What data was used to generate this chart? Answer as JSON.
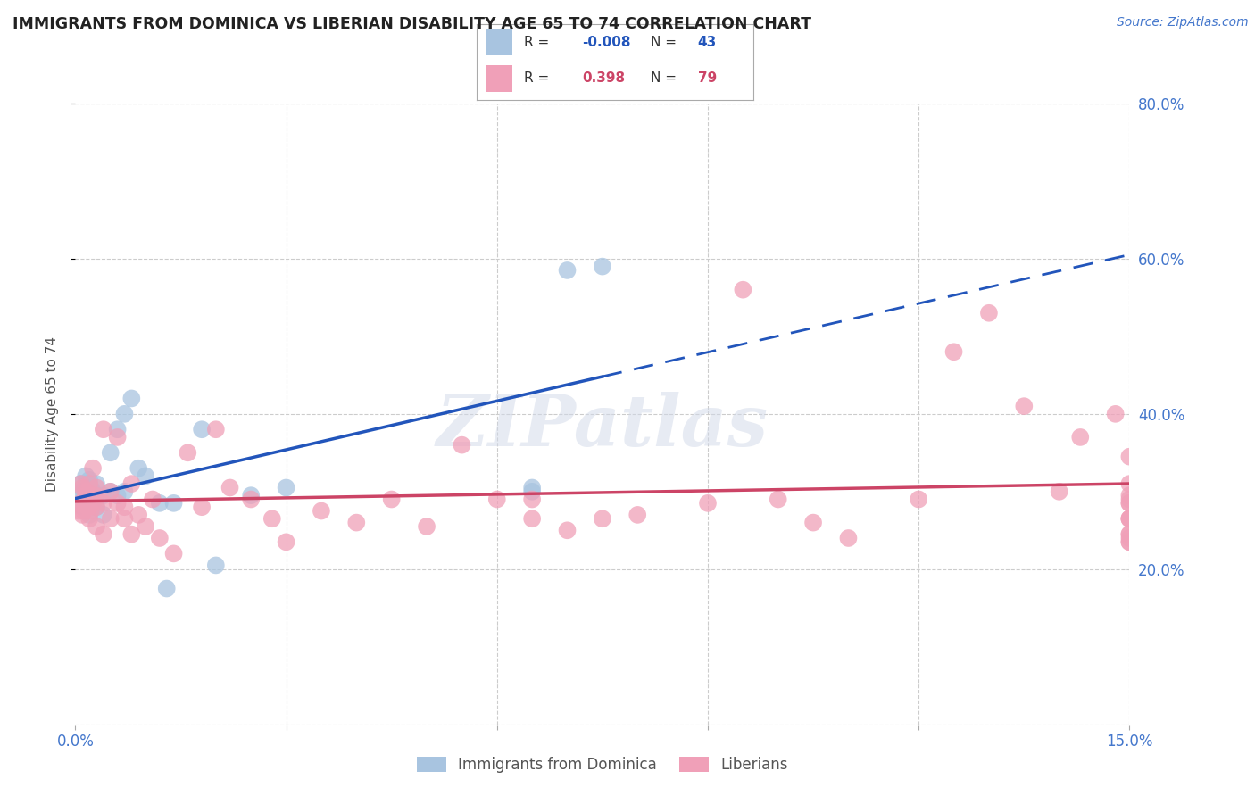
{
  "title": "IMMIGRANTS FROM DOMINICA VS LIBERIAN DISABILITY AGE 65 TO 74 CORRELATION CHART",
  "source_text": "Source: ZipAtlas.com",
  "ylabel": "Disability Age 65 to 74",
  "xlim": [
    0.0,
    0.15
  ],
  "ylim": [
    0.0,
    0.8
  ],
  "xticks": [
    0.0,
    0.03,
    0.06,
    0.09,
    0.12,
    0.15
  ],
  "xtick_labels": [
    "0.0%",
    "",
    "",
    "",
    "",
    "15.0%"
  ],
  "ytick_labels": [
    "20.0%",
    "40.0%",
    "60.0%",
    "80.0%"
  ],
  "yticks": [
    0.2,
    0.4,
    0.6,
    0.8
  ],
  "watermark": "ZIPatlas",
  "series1_name": "Immigrants from Dominica",
  "series2_name": "Liberians",
  "series1_R": "-0.008",
  "series1_N": "43",
  "series2_R": "0.398",
  "series2_N": "79",
  "series1_color": "#a8c4e0",
  "series2_color": "#f0a0b8",
  "series1_line_color": "#2255bb",
  "series2_line_color": "#cc4466",
  "background_color": "#ffffff",
  "grid_color": "#cccccc",
  "title_color": "#222222",
  "axis_label_color": "#4477cc",
  "series1_x": [
    0.0005,
    0.0007,
    0.001,
    0.0012,
    0.0014,
    0.0015,
    0.0015,
    0.0016,
    0.0016,
    0.0018,
    0.0018,
    0.002,
    0.002,
    0.0022,
    0.0022,
    0.0025,
    0.0025,
    0.0028,
    0.003,
    0.003,
    0.003,
    0.004,
    0.004,
    0.005,
    0.005,
    0.006,
    0.006,
    0.007,
    0.007,
    0.008,
    0.009,
    0.01,
    0.012,
    0.013,
    0.014,
    0.018,
    0.02,
    0.025,
    0.03,
    0.065,
    0.065,
    0.07,
    0.075
  ],
  "series1_y": [
    0.295,
    0.31,
    0.28,
    0.3,
    0.305,
    0.29,
    0.32,
    0.285,
    0.31,
    0.295,
    0.3,
    0.27,
    0.315,
    0.29,
    0.305,
    0.285,
    0.3,
    0.29,
    0.28,
    0.295,
    0.31,
    0.27,
    0.295,
    0.3,
    0.35,
    0.295,
    0.38,
    0.3,
    0.4,
    0.42,
    0.33,
    0.32,
    0.285,
    0.175,
    0.285,
    0.38,
    0.205,
    0.295,
    0.305,
    0.305,
    0.3,
    0.585,
    0.59
  ],
  "series2_x": [
    0.0005,
    0.0007,
    0.0008,
    0.001,
    0.001,
    0.0012,
    0.0014,
    0.0015,
    0.0016,
    0.0018,
    0.002,
    0.002,
    0.0022,
    0.0025,
    0.0025,
    0.0028,
    0.003,
    0.003,
    0.003,
    0.004,
    0.004,
    0.004,
    0.005,
    0.005,
    0.006,
    0.006,
    0.007,
    0.007,
    0.008,
    0.008,
    0.009,
    0.01,
    0.011,
    0.012,
    0.014,
    0.016,
    0.018,
    0.02,
    0.022,
    0.025,
    0.028,
    0.03,
    0.035,
    0.04,
    0.045,
    0.05,
    0.055,
    0.06,
    0.065,
    0.065,
    0.07,
    0.075,
    0.08,
    0.09,
    0.095,
    0.1,
    0.105,
    0.11,
    0.12,
    0.125,
    0.13,
    0.135,
    0.14,
    0.143,
    0.148,
    0.15,
    0.15,
    0.15,
    0.15,
    0.15,
    0.15,
    0.15,
    0.15,
    0.15,
    0.15,
    0.15,
    0.15,
    0.15,
    0.15
  ],
  "series2_y": [
    0.275,
    0.285,
    0.31,
    0.27,
    0.305,
    0.275,
    0.285,
    0.295,
    0.3,
    0.28,
    0.265,
    0.31,
    0.275,
    0.285,
    0.33,
    0.295,
    0.255,
    0.28,
    0.305,
    0.245,
    0.285,
    0.38,
    0.265,
    0.3,
    0.285,
    0.37,
    0.265,
    0.28,
    0.245,
    0.31,
    0.27,
    0.255,
    0.29,
    0.24,
    0.22,
    0.35,
    0.28,
    0.38,
    0.305,
    0.29,
    0.265,
    0.235,
    0.275,
    0.26,
    0.29,
    0.255,
    0.36,
    0.29,
    0.29,
    0.265,
    0.25,
    0.265,
    0.27,
    0.285,
    0.56,
    0.29,
    0.26,
    0.24,
    0.29,
    0.48,
    0.53,
    0.41,
    0.3,
    0.37,
    0.4,
    0.24,
    0.235,
    0.295,
    0.345,
    0.285,
    0.265,
    0.245,
    0.265,
    0.31,
    0.235,
    0.245,
    0.29,
    0.285,
    0.265
  ]
}
